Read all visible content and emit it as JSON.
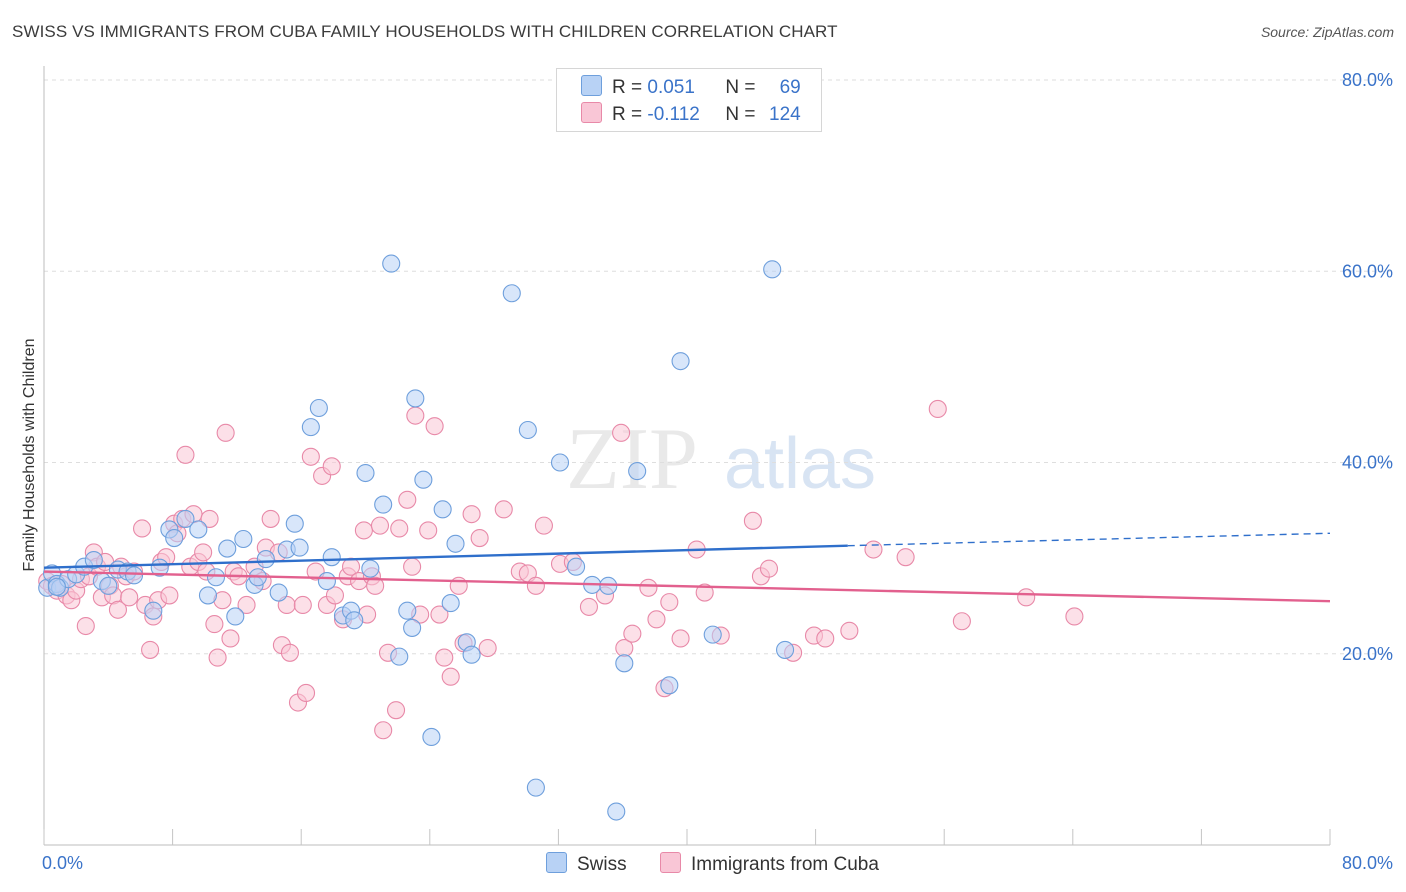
{
  "header": {
    "title": "SWISS VS IMMIGRANTS FROM CUBA FAMILY HOUSEHOLDS WITH CHILDREN CORRELATION CHART",
    "source": "Source: ZipAtlas.com"
  },
  "watermark": {
    "zip": "ZIP",
    "atlas": "atlas"
  },
  "legend": {
    "rows": [
      {
        "r_label": "R = ",
        "r_value": "0.051",
        "n_label": "N = ",
        "n_value": "69"
      },
      {
        "r_label": "R = ",
        "r_value": "-0.112",
        "n_label": "N = ",
        "n_value": "124"
      }
    ]
  },
  "colors": {
    "swiss_fill": "#b8d2f5",
    "swiss_stroke": "#6e9fdc",
    "swiss_line": "#2f6fcb",
    "cuba_fill": "#f9c6d6",
    "cuba_stroke": "#e889a8",
    "cuba_line": "#e2608e",
    "axis_text": "#3a73c9",
    "grid": "#dedede"
  },
  "chart_data": {
    "type": "scatter",
    "title": "SWISS VS IMMIGRANTS FROM CUBA FAMILY HOUSEHOLDS WITH CHILDREN CORRELATION CHART",
    "xlabel": "",
    "ylabel": "Family Households with Children",
    "xlim": [
      0,
      80
    ],
    "ylim": [
      0,
      80
    ],
    "x_tick_labels": [
      "0.0%",
      "80.0%"
    ],
    "y_ticks": [
      20,
      40,
      60,
      80
    ],
    "y_tick_labels": [
      "20.0%",
      "40.0%",
      "60.0%",
      "80.0%"
    ],
    "grid": true,
    "legend_position": "top-center",
    "series": [
      {
        "name": "Swiss",
        "r": 0.051,
        "n": 69,
        "trend": {
          "x": [
            0,
            50
          ],
          "y": [
            29.0,
            31.3
          ],
          "dashed_to": [
            80,
            32.6
          ]
        },
        "points": [
          [
            0.2,
            26.9
          ],
          [
            0.5,
            28.4
          ],
          [
            0.8,
            27.3
          ],
          [
            1.0,
            26.9
          ],
          [
            1.5,
            27.8
          ],
          [
            2.0,
            28.3
          ],
          [
            2.5,
            29.1
          ],
          [
            3.1,
            29.8
          ],
          [
            3.6,
            27.6
          ],
          [
            4.0,
            27.1
          ],
          [
            4.6,
            28.8
          ],
          [
            5.2,
            28.6
          ],
          [
            5.6,
            28.2
          ],
          [
            6.8,
            24.5
          ],
          [
            7.2,
            29.0
          ],
          [
            7.8,
            33.0
          ],
          [
            8.1,
            32.1
          ],
          [
            8.8,
            34.1
          ],
          [
            9.6,
            33.0
          ],
          [
            10.2,
            26.1
          ],
          [
            10.7,
            28.0
          ],
          [
            11.4,
            31.0
          ],
          [
            11.9,
            23.9
          ],
          [
            12.4,
            32.0
          ],
          [
            13.1,
            27.2
          ],
          [
            13.3,
            28.0
          ],
          [
            13.8,
            29.9
          ],
          [
            14.6,
            26.4
          ],
          [
            15.1,
            30.9
          ],
          [
            15.6,
            33.6
          ],
          [
            15.9,
            31.1
          ],
          [
            16.6,
            43.7
          ],
          [
            17.1,
            45.7
          ],
          [
            17.6,
            27.6
          ],
          [
            17.9,
            30.1
          ],
          [
            18.6,
            24.0
          ],
          [
            19.1,
            24.5
          ],
          [
            19.3,
            23.5
          ],
          [
            20.0,
            38.9
          ],
          [
            20.3,
            28.9
          ],
          [
            21.1,
            35.6
          ],
          [
            21.6,
            60.8
          ],
          [
            22.1,
            19.7
          ],
          [
            22.6,
            24.5
          ],
          [
            22.9,
            22.7
          ],
          [
            23.1,
            46.7
          ],
          [
            23.6,
            38.2
          ],
          [
            24.1,
            11.3
          ],
          [
            24.8,
            35.1
          ],
          [
            25.3,
            25.3
          ],
          [
            25.6,
            31.5
          ],
          [
            26.3,
            21.2
          ],
          [
            26.6,
            19.9
          ],
          [
            29.1,
            57.7
          ],
          [
            30.1,
            43.4
          ],
          [
            30.6,
            6.0
          ],
          [
            32.1,
            40.0
          ],
          [
            33.1,
            29.1
          ],
          [
            34.1,
            27.2
          ],
          [
            35.1,
            27.1
          ],
          [
            35.6,
            3.5
          ],
          [
            36.1,
            19.0
          ],
          [
            36.9,
            39.1
          ],
          [
            38.9,
            16.7
          ],
          [
            39.6,
            50.6
          ],
          [
            41.6,
            22.0
          ],
          [
            45.3,
            60.2
          ],
          [
            46.1,
            20.4
          ],
          [
            0.8,
            27.0
          ]
        ]
      },
      {
        "name": "Immigrants from Cuba",
        "r": -0.112,
        "n": 124,
        "trend": {
          "x": [
            0,
            80
          ],
          "y": [
            28.6,
            25.5
          ]
        },
        "points": [
          [
            0.2,
            27.6
          ],
          [
            0.5,
            27.1
          ],
          [
            0.8,
            26.6
          ],
          [
            1.1,
            27.3
          ],
          [
            1.4,
            26.1
          ],
          [
            1.7,
            25.6
          ],
          [
            2.0,
            26.6
          ],
          [
            2.3,
            27.8
          ],
          [
            2.6,
            22.9
          ],
          [
            2.8,
            28.1
          ],
          [
            3.1,
            30.6
          ],
          [
            3.3,
            29.1
          ],
          [
            3.6,
            25.9
          ],
          [
            3.8,
            29.6
          ],
          [
            4.1,
            27.1
          ],
          [
            4.3,
            26.1
          ],
          [
            4.6,
            24.6
          ],
          [
            4.8,
            29.1
          ],
          [
            5.1,
            28.1
          ],
          [
            5.3,
            25.9
          ],
          [
            5.6,
            28.6
          ],
          [
            6.1,
            33.1
          ],
          [
            6.3,
            25.1
          ],
          [
            6.6,
            20.4
          ],
          [
            6.8,
            23.9
          ],
          [
            7.1,
            25.6
          ],
          [
            7.3,
            29.6
          ],
          [
            7.6,
            30.1
          ],
          [
            7.8,
            26.1
          ],
          [
            8.1,
            33.6
          ],
          [
            8.3,
            32.6
          ],
          [
            8.6,
            34.1
          ],
          [
            8.8,
            40.8
          ],
          [
            9.1,
            29.1
          ],
          [
            9.3,
            34.6
          ],
          [
            9.6,
            29.6
          ],
          [
            9.9,
            30.6
          ],
          [
            10.1,
            28.6
          ],
          [
            10.3,
            34.1
          ],
          [
            10.6,
            23.1
          ],
          [
            10.8,
            19.6
          ],
          [
            11.1,
            25.6
          ],
          [
            11.3,
            43.1
          ],
          [
            11.6,
            21.6
          ],
          [
            11.8,
            28.6
          ],
          [
            12.1,
            28.1
          ],
          [
            12.6,
            25.1
          ],
          [
            13.1,
            29.1
          ],
          [
            13.6,
            27.6
          ],
          [
            13.8,
            31.1
          ],
          [
            14.1,
            34.1
          ],
          [
            14.6,
            30.6
          ],
          [
            14.8,
            20.9
          ],
          [
            15.1,
            25.1
          ],
          [
            15.3,
            20.1
          ],
          [
            15.8,
            14.9
          ],
          [
            16.1,
            25.1
          ],
          [
            16.3,
            15.9
          ],
          [
            16.6,
            40.6
          ],
          [
            16.9,
            28.6
          ],
          [
            17.3,
            38.6
          ],
          [
            17.6,
            25.1
          ],
          [
            17.9,
            39.6
          ],
          [
            18.1,
            26.1
          ],
          [
            18.6,
            23.6
          ],
          [
            18.9,
            28.1
          ],
          [
            19.1,
            29.1
          ],
          [
            19.6,
            27.6
          ],
          [
            19.9,
            32.9
          ],
          [
            20.1,
            24.1
          ],
          [
            20.4,
            28.1
          ],
          [
            20.6,
            27.1
          ],
          [
            20.9,
            33.4
          ],
          [
            21.1,
            12.0
          ],
          [
            21.4,
            20.1
          ],
          [
            21.9,
            14.1
          ],
          [
            22.1,
            33.1
          ],
          [
            22.6,
            36.1
          ],
          [
            22.9,
            29.1
          ],
          [
            23.1,
            44.9
          ],
          [
            23.4,
            24.1
          ],
          [
            23.9,
            32.9
          ],
          [
            24.3,
            43.8
          ],
          [
            24.6,
            24.1
          ],
          [
            24.9,
            19.6
          ],
          [
            25.3,
            17.6
          ],
          [
            25.8,
            27.1
          ],
          [
            26.1,
            21.1
          ],
          [
            26.6,
            34.6
          ],
          [
            27.1,
            32.1
          ],
          [
            27.6,
            20.6
          ],
          [
            28.6,
            35.1
          ],
          [
            29.6,
            28.6
          ],
          [
            30.1,
            28.4
          ],
          [
            30.6,
            27.1
          ],
          [
            31.1,
            33.4
          ],
          [
            32.1,
            29.4
          ],
          [
            32.9,
            29.6
          ],
          [
            33.9,
            24.9
          ],
          [
            34.9,
            26.1
          ],
          [
            35.9,
            43.1
          ],
          [
            36.1,
            20.6
          ],
          [
            36.6,
            22.1
          ],
          [
            37.6,
            26.9
          ],
          [
            38.1,
            23.6
          ],
          [
            38.6,
            16.4
          ],
          [
            38.9,
            25.4
          ],
          [
            39.6,
            21.6
          ],
          [
            40.6,
            30.9
          ],
          [
            41.1,
            26.4
          ],
          [
            42.1,
            21.9
          ],
          [
            44.1,
            33.9
          ],
          [
            44.6,
            28.1
          ],
          [
            45.1,
            28.9
          ],
          [
            46.6,
            20.1
          ],
          [
            47.9,
            21.9
          ],
          [
            48.6,
            21.6
          ],
          [
            50.1,
            22.4
          ],
          [
            51.6,
            30.9
          ],
          [
            53.6,
            30.1
          ],
          [
            55.6,
            45.6
          ],
          [
            57.1,
            23.4
          ],
          [
            61.1,
            25.9
          ],
          [
            64.1,
            23.9
          ]
        ]
      }
    ]
  },
  "bottom_legend": {
    "items": [
      "Swiss",
      "Immigrants from Cuba"
    ]
  }
}
